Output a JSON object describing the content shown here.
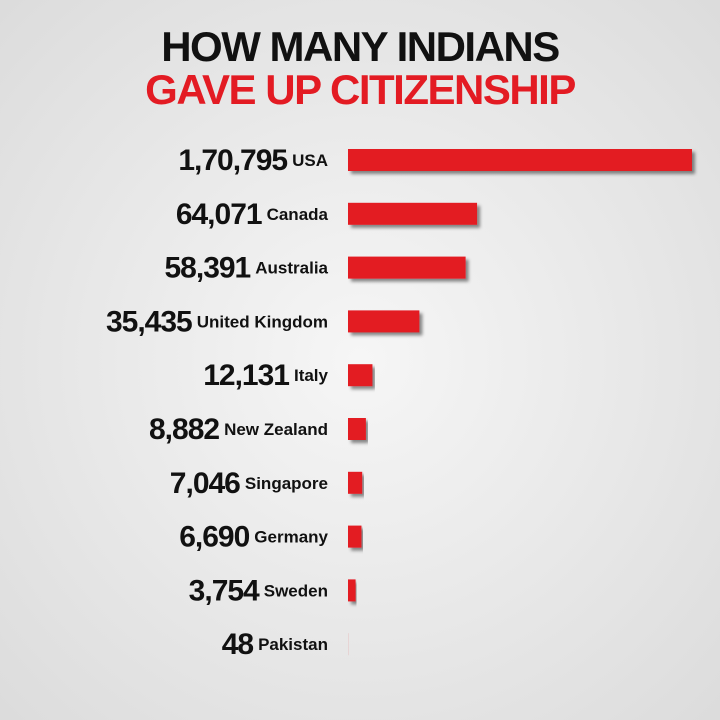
{
  "chart_data": {
    "type": "bar",
    "orientation": "horizontal",
    "title": "HOW MANY INDIANS",
    "subtitle": "GAVE UP CITIZENSHIP",
    "categories": [
      "USA",
      "Canada",
      "Australia",
      "United Kingdom",
      "Italy",
      "New Zealand",
      "Singapore",
      "Germany",
      "Sweden",
      "Pakistan"
    ],
    "values": [
      170795,
      64071,
      58391,
      35435,
      12131,
      8882,
      7046,
      6690,
      3754,
      48
    ],
    "value_labels": [
      "1,70,795",
      "64,071",
      "58,391",
      "35,435",
      "12,131",
      "8,882",
      "7,046",
      "6,690",
      "3,754",
      "48"
    ],
    "color": "#e31b23"
  }
}
